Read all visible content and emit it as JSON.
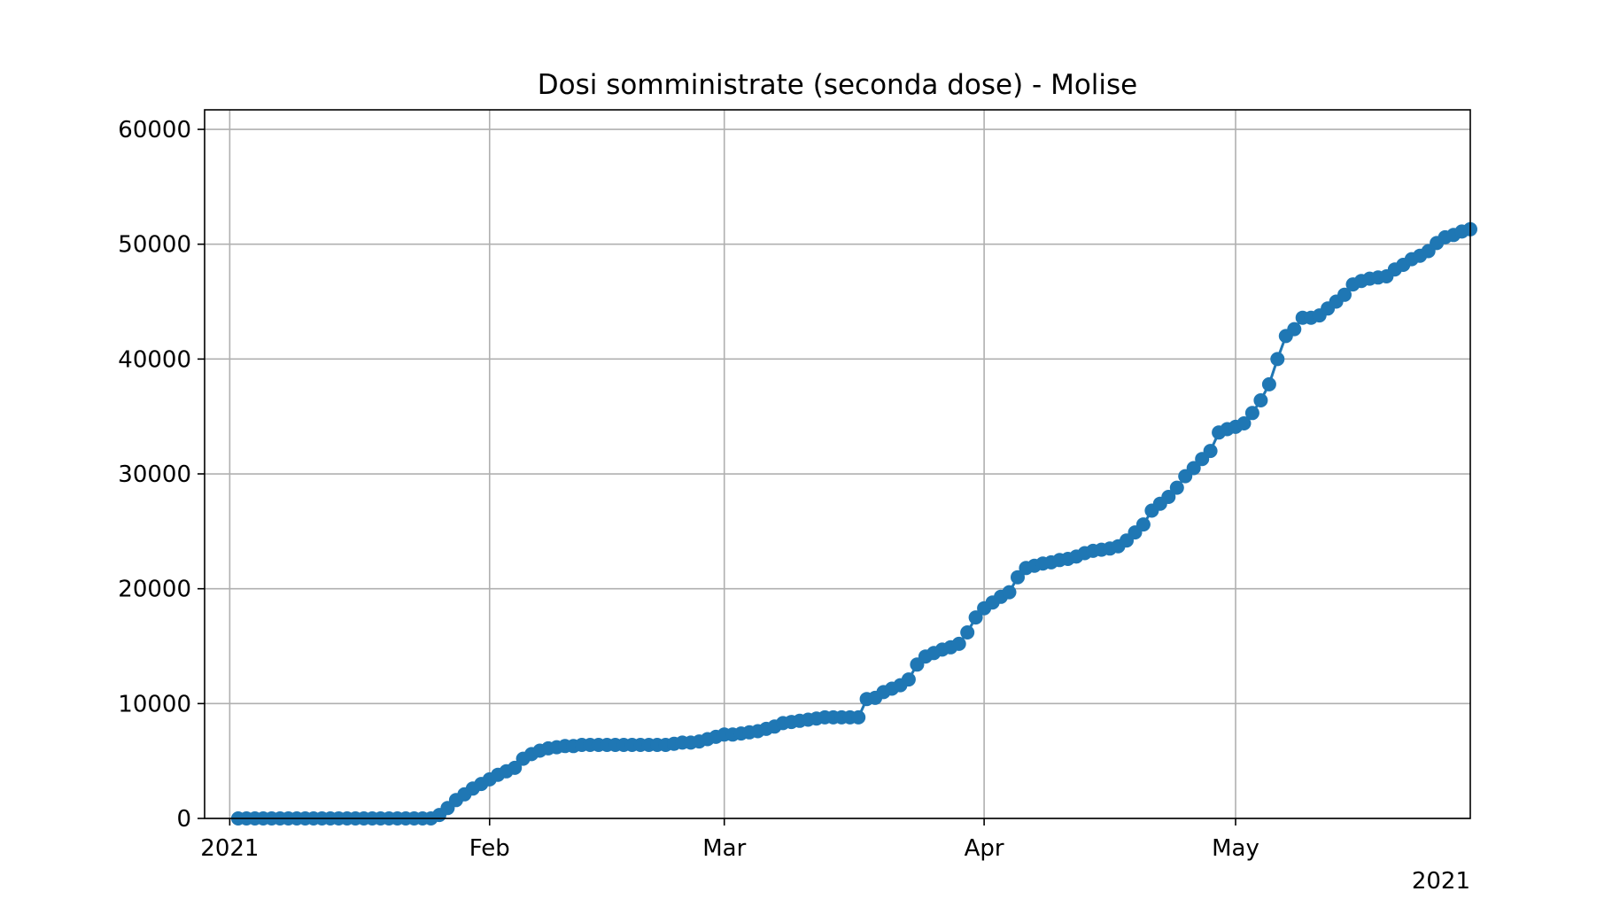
{
  "chart_data": {
    "type": "line",
    "title": "Dosi somministrate (seconda dose) - Molise",
    "xlabel": "",
    "ylabel": "",
    "x_axis": {
      "type": "date",
      "range": [
        "2020-12-29",
        "2021-05-29"
      ],
      "tick_labels": [
        {
          "date": "2021-01-01",
          "label": "2021"
        },
        {
          "date": "2021-02-01",
          "label": "Feb"
        },
        {
          "date": "2021-03-01",
          "label": "Mar"
        },
        {
          "date": "2021-04-01",
          "label": "Apr"
        },
        {
          "date": "2021-05-01",
          "label": "May"
        }
      ],
      "offset_label": "2021"
    },
    "y_axis": {
      "range": [
        0,
        61700
      ],
      "ticks": [
        0,
        10000,
        20000,
        30000,
        40000,
        50000,
        60000
      ],
      "tick_labels": [
        "0",
        "10000",
        "20000",
        "30000",
        "40000",
        "50000",
        "60000"
      ]
    },
    "grid": true,
    "legend": null,
    "series_color": "#1f77b4",
    "series": [
      {
        "start_date": "2021-01-02",
        "values": [
          0,
          0,
          0,
          0,
          0,
          0,
          0,
          0,
          0,
          0,
          0,
          0,
          0,
          0,
          0,
          0,
          0,
          0,
          0,
          0,
          0,
          0,
          0,
          0,
          300,
          900,
          1600,
          2100,
          2600,
          3000,
          3400,
          3800,
          4100,
          4400,
          5200,
          5600,
          5900,
          6100,
          6200,
          6300,
          6300,
          6400,
          6400,
          6400,
          6400,
          6400,
          6400,
          6400,
          6400,
          6400,
          6400,
          6400,
          6500,
          6600,
          6600,
          6700,
          6900,
          7100,
          7300,
          7300,
          7400,
          7500,
          7600,
          7800,
          8000,
          8300,
          8400,
          8500,
          8600,
          8700,
          8800,
          8800,
          8800,
          8800,
          8800,
          10400,
          10500,
          11000,
          11300,
          11600,
          12100,
          13400,
          14100,
          14400,
          14700,
          14900,
          15200,
          16200,
          17500,
          18300,
          18800,
          19300,
          19700,
          21000,
          21800,
          22000,
          22200,
          22300,
          22500,
          22600,
          22800,
          23100,
          23300,
          23400,
          23500,
          23700,
          24200,
          24900,
          25600,
          26800,
          27400,
          28000,
          28800,
          29800,
          30500,
          31300,
          32000,
          33600,
          33900,
          34100,
          34400,
          35300,
          36400,
          37800,
          40000,
          42000,
          42600,
          43600,
          43600,
          43800,
          44400,
          45000,
          45600,
          46500,
          46800,
          47000,
          47100,
          47200,
          47800,
          48200,
          48700,
          49000,
          49400,
          50100,
          50600,
          50800,
          51100,
          51300
        ]
      }
    ]
  }
}
